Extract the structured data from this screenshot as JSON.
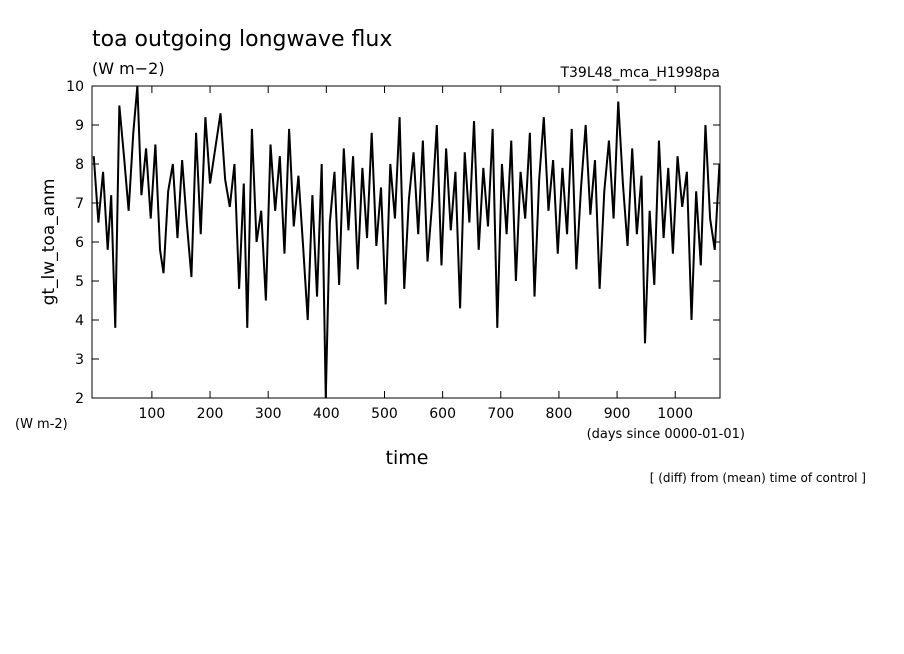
{
  "chart_data": {
    "type": "line",
    "title": "toa outgoing longwave flux",
    "subtitle": "(W m−2)",
    "run_label": "T39L48_mca_H1998pa",
    "y_label": "gt_lw_toa_anm",
    "y_unit": "(W m-2)",
    "x_label": "time",
    "x_unit": "(days since 0000-01-01)",
    "note": "[ (diff) from (mean) time of control ]",
    "color": "#000000",
    "xlim": [
      -3,
      1077
    ],
    "ylim": [
      2,
      10
    ],
    "xticks": [
      100,
      200,
      300,
      400,
      500,
      600,
      700,
      800,
      900,
      1000
    ],
    "yticks": [
      2,
      3,
      4,
      5,
      6,
      7,
      8,
      9,
      10
    ],
    "x": [
      0,
      8,
      16,
      24,
      30,
      37,
      44,
      52,
      60,
      68,
      75,
      82,
      90,
      98,
      106,
      114,
      120,
      128,
      136,
      144,
      152,
      160,
      168,
      176,
      184,
      192,
      200,
      210,
      218,
      226,
      234,
      242,
      250,
      258,
      264,
      272,
      280,
      288,
      296,
      304,
      312,
      320,
      328,
      336,
      344,
      352,
      360,
      368,
      376,
      384,
      392,
      399,
      406,
      414,
      422,
      430,
      438,
      446,
      454,
      462,
      470,
      478,
      486,
      494,
      502,
      510,
      518,
      526,
      534,
      542,
      550,
      558,
      566,
      574,
      582,
      590,
      598,
      606,
      614,
      622,
      630,
      638,
      646,
      654,
      662,
      670,
      678,
      686,
      694,
      702,
      710,
      718,
      726,
      734,
      742,
      750,
      758,
      766,
      774,
      782,
      790,
      798,
      806,
      814,
      822,
      830,
      838,
      846,
      854,
      862,
      870,
      878,
      886,
      894,
      902,
      910,
      918,
      926,
      934,
      942,
      948,
      956,
      964,
      972,
      980,
      988,
      996,
      1004,
      1012,
      1020,
      1028,
      1036,
      1044,
      1052,
      1060,
      1068,
      1076
    ],
    "values": [
      8.2,
      6.5,
      7.8,
      5.8,
      7.2,
      3.8,
      9.5,
      8.2,
      6.8,
      8.8,
      10.0,
      7.2,
      8.4,
      6.6,
      8.5,
      5.8,
      5.2,
      7.3,
      8.0,
      6.1,
      8.1,
      6.5,
      5.1,
      8.8,
      6.2,
      9.2,
      7.5,
      8.5,
      9.3,
      7.6,
      6.9,
      8.0,
      4.8,
      7.5,
      3.8,
      8.9,
      6.0,
      6.8,
      4.5,
      8.5,
      6.8,
      8.2,
      5.7,
      8.9,
      6.4,
      7.7,
      5.9,
      4.0,
      7.2,
      4.6,
      8.0,
      2.0,
      6.5,
      7.8,
      4.9,
      8.4,
      6.3,
      8.2,
      5.3,
      7.9,
      6.1,
      8.8,
      5.9,
      7.4,
      4.4,
      8.0,
      6.6,
      9.2,
      4.8,
      7.1,
      8.3,
      6.2,
      8.6,
      5.5,
      7.0,
      9.0,
      5.4,
      8.4,
      6.3,
      7.8,
      4.3,
      8.3,
      6.5,
      9.1,
      5.8,
      7.9,
      6.4,
      8.9,
      3.8,
      8.0,
      6.2,
      8.6,
      5.0,
      7.8,
      6.6,
      8.8,
      4.6,
      7.6,
      9.2,
      6.8,
      8.1,
      5.7,
      7.9,
      6.2,
      8.9,
      5.3,
      7.4,
      9.0,
      6.7,
      8.1,
      4.8,
      7.3,
      8.6,
      6.6,
      9.6,
      7.5,
      5.9,
      8.4,
      6.2,
      7.7,
      3.4,
      6.8,
      4.9,
      8.6,
      6.1,
      7.9,
      5.7,
      8.2,
      6.9,
      7.8,
      4.0,
      7.3,
      5.4,
      9.0,
      6.6,
      5.8,
      8.0
    ]
  }
}
